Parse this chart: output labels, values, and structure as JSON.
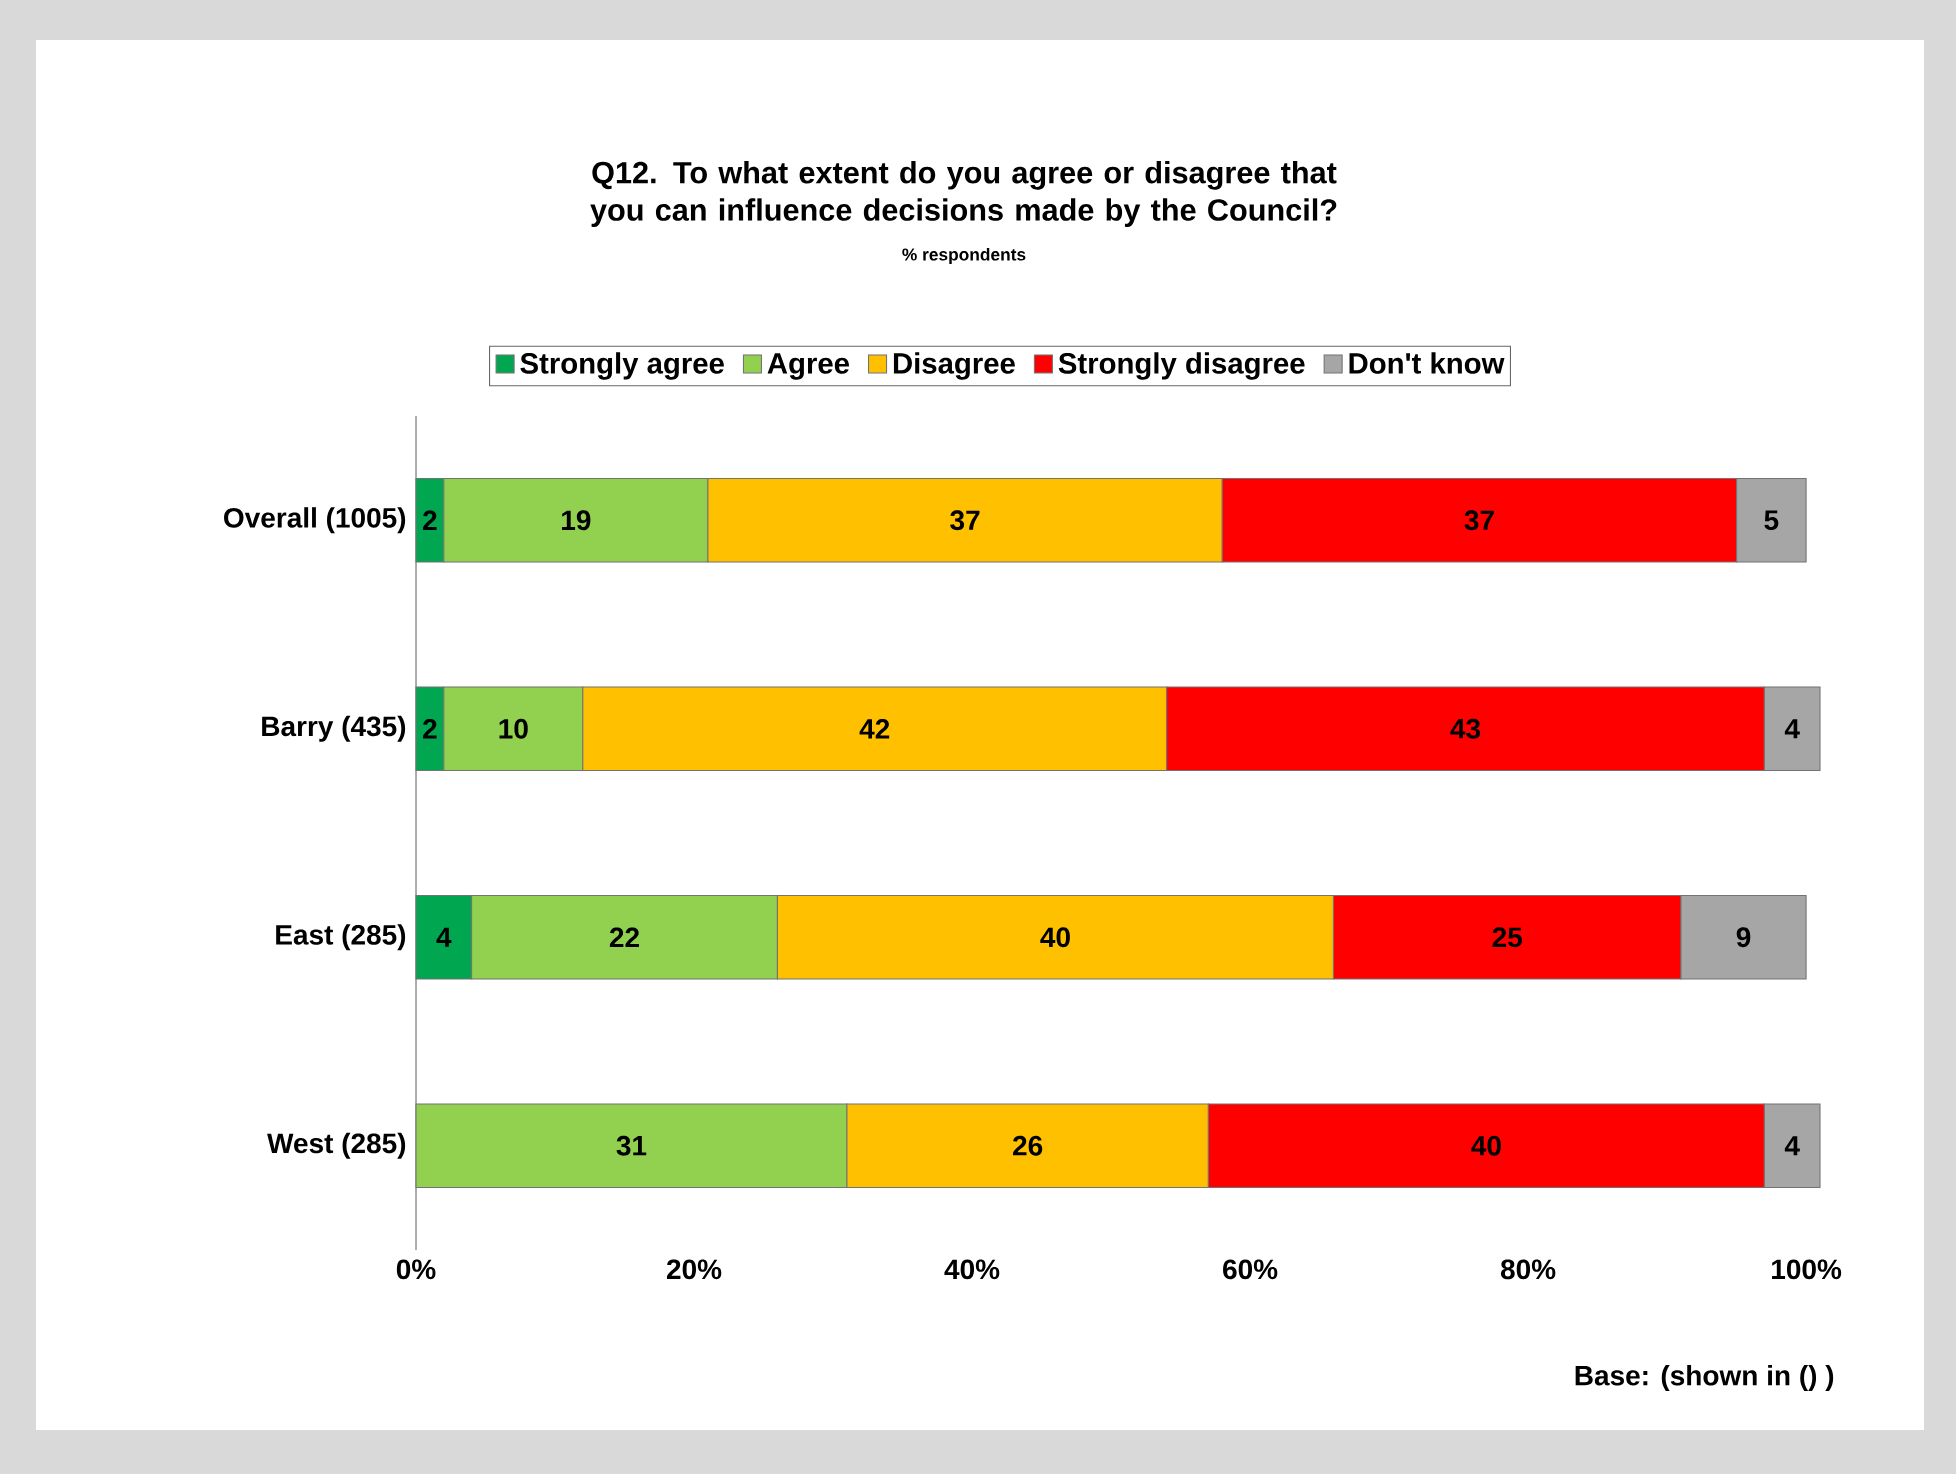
{
  "chart_data": {
    "type": "bar",
    "orientation": "horizontal",
    "stacked": true,
    "title": "Q12. To what extent do you agree or disagree that you can influence decisions made by the Council?",
    "subtitle": "% respondents",
    "categories": [
      "Overall (1005)",
      "Barry (435)",
      "East (285)",
      "West (285)"
    ],
    "series": [
      {
        "name": "Strongly agree",
        "color": "#00a650",
        "values": [
          2,
          2,
          4,
          null
        ]
      },
      {
        "name": "Agree",
        "color": "#92d050",
        "values": [
          19,
          10,
          22,
          31
        ]
      },
      {
        "name": "Disagree",
        "color": "#ffc000",
        "values": [
          37,
          42,
          40,
          26
        ]
      },
      {
        "name": "Strongly disagree",
        "color": "#ff0000",
        "values": [
          37,
          43,
          25,
          40
        ]
      },
      {
        "name": "Don't know",
        "color": "#a6a6a6",
        "values": [
          5,
          4,
          9,
          4
        ]
      }
    ],
    "xlim": [
      0,
      101
    ],
    "xticks": [
      {
        "value": 0,
        "label": "0%"
      },
      {
        "value": 20,
        "label": "20%"
      },
      {
        "value": 40,
        "label": "40%"
      },
      {
        "value": 60,
        "label": "60%"
      },
      {
        "value": 80,
        "label": "80%"
      },
      {
        "value": 100,
        "label": "100%"
      }
    ],
    "data_labels": true,
    "legend": "top",
    "grid": false,
    "annotations": [
      "Base: (shown in () )"
    ]
  }
}
